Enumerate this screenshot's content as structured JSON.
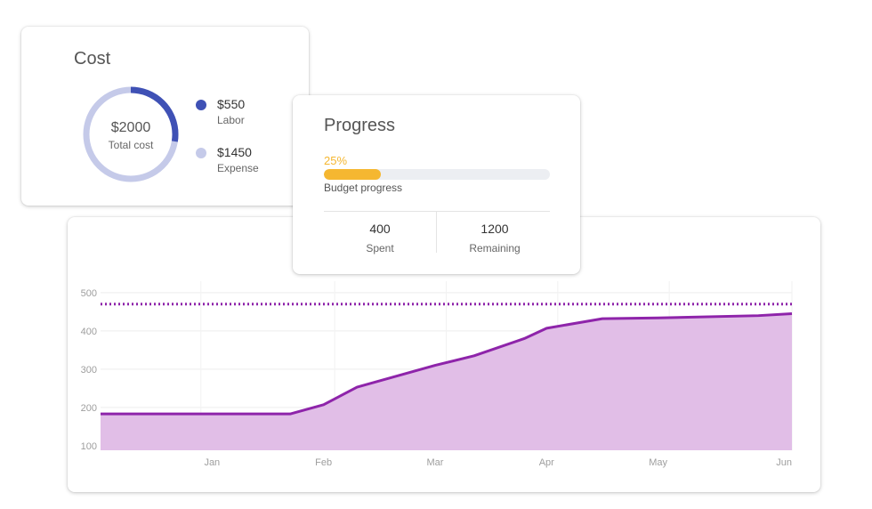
{
  "cost_card": {
    "title": "Cost",
    "donut": {
      "total": "$2000",
      "subtitle": "Total cost"
    },
    "legend": [
      {
        "value": "$550",
        "label": "Labor",
        "color": "#3f51b5"
      },
      {
        "value": "$1450",
        "label": "Expense",
        "color": "#c5cae9"
      }
    ]
  },
  "progress_card": {
    "title": "Progress",
    "percent_text": "25%",
    "percent": 0.25,
    "bar_label": "Budget progress",
    "bar_color": "#f5b731",
    "stats": [
      {
        "value": "400",
        "label": "Spent"
      },
      {
        "value": "1200",
        "label": "Remaining"
      }
    ]
  },
  "chart_data": {
    "type": "area",
    "x": [
      0,
      0.9,
      1.25,
      1.7,
      2.0,
      2.3,
      3.0,
      3.35,
      3.8,
      4.0,
      4.5,
      5.0,
      5.9,
      6.2
    ],
    "values": [
      183,
      183,
      183,
      183,
      207,
      253,
      310,
      335,
      380,
      407,
      432,
      434,
      440,
      445
    ],
    "categories": [
      "Jan",
      "Feb",
      "Mar",
      "Apr",
      "May",
      "Jun"
    ],
    "category_x": [
      1.0,
      2.0,
      3.0,
      4.0,
      5.0,
      6.2
    ],
    "y_ticks": [
      100,
      200,
      300,
      400,
      500
    ],
    "ylim": [
      88,
      530
    ],
    "xlim": [
      0,
      6.2
    ],
    "threshold": 470,
    "line_color": "#8e24aa",
    "fill_color": "#e1bee7",
    "grid": true
  }
}
